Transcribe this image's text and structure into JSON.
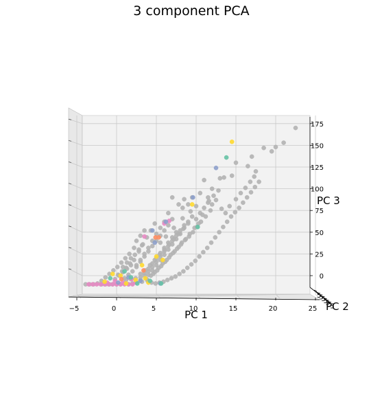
{
  "chart_data": {
    "type": "scatter",
    "projection": "3d",
    "title": "3 component PCA",
    "xlabel": "PC 1",
    "ylabel": "PC 2",
    "zlabel": "PC 3",
    "xlim": [
      -5,
      25
    ],
    "zlim": [
      -12,
      180
    ],
    "x_ticks": [
      "−5",
      "0",
      "5",
      "10",
      "15",
      "20",
      "25"
    ],
    "z_ticks": [
      "0",
      "25",
      "50",
      "75",
      "100",
      "125",
      "150",
      "175"
    ],
    "y_tick_fragment": "5",
    "grid": true,
    "colors": {
      "gray": "#b3b3b3",
      "pink": "#e78ac3",
      "yellow": "#ffd92f",
      "blue": "#8da0cb",
      "green": "#66c2a5",
      "orange": "#fc8d62"
    },
    "series": [
      {
        "color": "gray",
        "points": [
          [
            22.5,
            170
          ],
          [
            18.5,
            147
          ],
          [
            17.0,
            137
          ],
          [
            20.0,
            148
          ],
          [
            19.5,
            143
          ],
          [
            21.0,
            153
          ],
          [
            16.5,
            126
          ],
          [
            15.0,
            130
          ],
          [
            17.5,
            120
          ],
          [
            14.5,
            115
          ],
          [
            13.0,
            112
          ],
          [
            13.5,
            113
          ],
          [
            11.0,
            110
          ],
          [
            12.0,
            100
          ],
          [
            11.5,
            90
          ],
          [
            10.5,
            95
          ],
          [
            9.5,
            90
          ],
          [
            8.5,
            88
          ],
          [
            9.0,
            82
          ],
          [
            10.0,
            80
          ],
          [
            11.5,
            84
          ],
          [
            12.5,
            87
          ],
          [
            12.0,
            82
          ],
          [
            10.8,
            70
          ],
          [
            10.3,
            60
          ],
          [
            9.8,
            55
          ],
          [
            9.2,
            48
          ],
          [
            8.7,
            42
          ],
          [
            8.2,
            38
          ],
          [
            7.8,
            33
          ],
          [
            7.3,
            28
          ],
          [
            6.8,
            24
          ],
          [
            6.3,
            18
          ],
          [
            5.8,
            14
          ],
          [
            5.3,
            9
          ],
          [
            4.8,
            4
          ],
          [
            4.3,
            0
          ],
          [
            3.8,
            -4
          ],
          [
            3.2,
            -7
          ],
          [
            11.8,
            75
          ],
          [
            11.2,
            68
          ],
          [
            10.6,
            62
          ],
          [
            10.1,
            56
          ],
          [
            9.6,
            50
          ],
          [
            9.1,
            45
          ],
          [
            8.6,
            41
          ],
          [
            8.1,
            36
          ],
          [
            7.6,
            31
          ],
          [
            7.1,
            26
          ],
          [
            6.6,
            21
          ],
          [
            6.1,
            16
          ],
          [
            5.6,
            11
          ],
          [
            5.1,
            6
          ],
          [
            4.6,
            2
          ],
          [
            7.0,
            65
          ],
          [
            6.5,
            58
          ],
          [
            6.0,
            52
          ],
          [
            5.5,
            46
          ],
          [
            5.0,
            40
          ],
          [
            4.5,
            34
          ],
          [
            4.0,
            28
          ],
          [
            3.5,
            22
          ],
          [
            3.0,
            16
          ],
          [
            2.5,
            10
          ],
          [
            2.0,
            5
          ],
          [
            1.5,
            1
          ],
          [
            1.0,
            -3
          ],
          [
            6.5,
            72
          ],
          [
            6.0,
            62
          ],
          [
            5.5,
            55
          ],
          [
            5.0,
            48
          ],
          [
            4.5,
            40
          ],
          [
            4.0,
            32
          ],
          [
            3.5,
            25
          ],
          [
            3.0,
            18
          ],
          [
            2.5,
            12
          ],
          [
            7.5,
            50
          ],
          [
            7.0,
            44
          ],
          [
            6.5,
            38
          ],
          [
            6.0,
            32
          ],
          [
            5.5,
            26
          ],
          [
            5.0,
            20
          ],
          [
            4.5,
            14
          ],
          [
            4.0,
            8
          ],
          [
            3.5,
            3
          ],
          [
            3.0,
            -2
          ],
          [
            8.5,
            55
          ],
          [
            8.0,
            48
          ],
          [
            7.5,
            42
          ],
          [
            7.0,
            36
          ],
          [
            6.5,
            30
          ],
          [
            6.0,
            24
          ],
          [
            5.5,
            18
          ],
          [
            5.0,
            12
          ],
          [
            4.5,
            6
          ],
          [
            4.0,
            1
          ],
          [
            9.5,
            68
          ],
          [
            9.0,
            62
          ],
          [
            8.5,
            58
          ],
          [
            8.0,
            52
          ],
          [
            7.5,
            46
          ],
          [
            7.0,
            40
          ],
          [
            6.5,
            34
          ],
          [
            6.0,
            28
          ],
          [
            5.5,
            22
          ],
          [
            5.0,
            16
          ],
          [
            4.5,
            10
          ],
          [
            4.0,
            5
          ],
          [
            3.5,
            0
          ],
          [
            3.0,
            -5
          ],
          [
            2.5,
            -8
          ],
          [
            2.0,
            -9
          ],
          [
            1.5,
            -10
          ],
          [
            1.0,
            -9
          ],
          [
            0.5,
            -10
          ],
          [
            0.0,
            -10
          ],
          [
            -0.5,
            -10
          ],
          [
            1.8,
            12
          ],
          [
            1.3,
            8
          ],
          [
            0.8,
            4
          ],
          [
            0.3,
            0
          ],
          [
            -0.2,
            -4
          ],
          [
            2.2,
            18
          ],
          [
            1.7,
            14
          ],
          [
            1.2,
            9
          ],
          [
            0.7,
            5
          ],
          [
            0.2,
            1
          ],
          [
            2.8,
            30
          ],
          [
            2.3,
            24
          ],
          [
            1.8,
            20
          ],
          [
            1.3,
            15
          ],
          [
            0.8,
            10
          ],
          [
            4.8,
            60
          ],
          [
            4.3,
            52
          ],
          [
            3.8,
            44
          ],
          [
            3.3,
            36
          ],
          [
            2.8,
            28
          ],
          [
            5.5,
            38
          ],
          [
            6.2,
            45
          ],
          [
            7.2,
            55
          ],
          [
            8.3,
            66
          ],
          [
            9.3,
            74
          ],
          [
            3.9,
            -6
          ],
          [
            4.4,
            -8
          ],
          [
            4.9,
            -9
          ],
          [
            5.4,
            -8
          ],
          [
            5.9,
            -7
          ],
          [
            6.4,
            -5
          ],
          [
            6.9,
            -3
          ],
          [
            7.4,
            -1
          ],
          [
            7.9,
            2
          ],
          [
            8.4,
            5
          ],
          [
            8.9,
            9
          ],
          [
            9.4,
            13
          ],
          [
            9.9,
            17
          ],
          [
            10.4,
            22
          ],
          [
            10.9,
            27
          ],
          [
            11.4,
            32
          ],
          [
            11.9,
            38
          ],
          [
            12.4,
            44
          ],
          [
            12.9,
            50
          ],
          [
            13.4,
            56
          ],
          [
            13.9,
            62
          ],
          [
            14.4,
            68
          ],
          [
            14.9,
            73
          ],
          [
            15.4,
            78
          ],
          [
            15.9,
            84
          ],
          [
            16.4,
            90
          ],
          [
            16.9,
            96
          ],
          [
            17.4,
            102
          ],
          [
            17.9,
            108
          ],
          [
            13.2,
            77
          ],
          [
            13.7,
            72
          ],
          [
            14.2,
            80
          ],
          [
            15.0,
            88
          ],
          [
            15.6,
            95
          ],
          [
            16.2,
            101
          ],
          [
            16.8,
            108
          ],
          [
            17.3,
            114
          ],
          [
            7.0,
            90
          ],
          [
            7.8,
            82
          ],
          [
            8.3,
            78
          ],
          [
            2.5,
            40
          ],
          [
            3.0,
            46
          ],
          [
            3.5,
            52
          ],
          [
            3.2,
            35
          ],
          [
            2.2,
            32
          ],
          [
            1.6,
            25
          ],
          [
            1.1,
            20
          ],
          [
            0.6,
            15
          ],
          [
            0.1,
            10
          ],
          [
            -0.4,
            6
          ],
          [
            -0.9,
            2
          ],
          [
            -1.4,
            -2
          ],
          [
            -1.9,
            -6
          ],
          [
            -2.4,
            -9
          ],
          [
            -3.4,
            -10
          ],
          [
            -2.9,
            -10
          ],
          [
            -1.9,
            -10
          ],
          [
            -1.4,
            -10
          ],
          [
            -0.9,
            -10
          ],
          [
            -3.9,
            -10
          ],
          [
            1.2,
            -5
          ],
          [
            1.8,
            -4
          ],
          [
            2.4,
            -3
          ],
          [
            3.0,
            2
          ],
          [
            3.6,
            6
          ],
          [
            4.2,
            12
          ],
          [
            4.8,
            18
          ],
          [
            5.4,
            24
          ],
          [
            6.0,
            30
          ],
          [
            6.6,
            36
          ],
          [
            7.2,
            42
          ],
          [
            7.8,
            48
          ],
          [
            8.4,
            54
          ],
          [
            9.0,
            60
          ],
          [
            10.0,
            65
          ],
          [
            10.5,
            72
          ],
          [
            11.0,
            78
          ],
          [
            11.6,
            86
          ],
          [
            12.2,
            92
          ],
          [
            12.8,
            98
          ]
        ]
      },
      {
        "color": "pink",
        "points": [
          [
            -3.5,
            -10
          ],
          [
            -3.0,
            -10
          ],
          [
            -2.5,
            -10
          ],
          [
            -2.0,
            -10
          ],
          [
            -1.5,
            -10
          ],
          [
            -1.0,
            -10
          ],
          [
            -0.5,
            -10
          ],
          [
            0.0,
            -10
          ],
          [
            0.5,
            -10
          ],
          [
            1.0,
            -10
          ],
          [
            1.5,
            -10
          ],
          [
            2.0,
            -10
          ],
          [
            -1.2,
            -8
          ],
          [
            0.8,
            -8
          ],
          [
            2.4,
            -8
          ],
          [
            3.5,
            45
          ],
          [
            6.0,
            60
          ],
          [
            6.6,
            63
          ],
          [
            1.9,
            -4
          ],
          [
            -0.2,
            -6
          ]
        ]
      },
      {
        "color": "yellow",
        "points": [
          [
            14.5,
            154
          ],
          [
            9.5,
            82
          ],
          [
            5.0,
            22
          ],
          [
            3.2,
            12
          ],
          [
            0.5,
            0
          ],
          [
            -0.5,
            2
          ],
          [
            2.4,
            -5
          ],
          [
            4.0,
            -8
          ],
          [
            5.8,
            18
          ],
          [
            1.2,
            -9
          ],
          [
            -1.5,
            -7
          ],
          [
            3.6,
            -3
          ]
        ]
      },
      {
        "color": "blue",
        "points": [
          [
            12.5,
            124
          ],
          [
            9.6,
            90
          ],
          [
            4.5,
            52
          ],
          [
            4.8,
            38
          ],
          [
            6.2,
            62
          ],
          [
            1.5,
            -2
          ],
          [
            5.5,
            -9
          ],
          [
            3.0,
            -6
          ],
          [
            0.2,
            -8
          ]
        ]
      },
      {
        "color": "green",
        "points": [
          [
            13.8,
            136
          ],
          [
            10.2,
            56
          ],
          [
            1.0,
            5
          ],
          [
            1.8,
            -2
          ],
          [
            -0.8,
            -3
          ],
          [
            4.2,
            -6
          ],
          [
            5.6,
            -9
          ],
          [
            2.6,
            -9
          ]
        ]
      },
      {
        "color": "orange",
        "points": [
          [
            4.9,
            44
          ],
          [
            5.3,
            44
          ],
          [
            3.4,
            6
          ],
          [
            0.6,
            -4
          ]
        ]
      }
    ]
  }
}
